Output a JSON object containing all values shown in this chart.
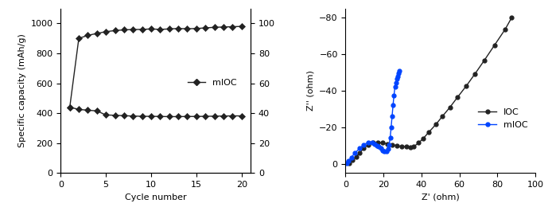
{
  "left_chart": {
    "xlabel": "Cycle number",
    "ylabel_left": "Specific capacity (mAh/g)",
    "xlim": [
      0,
      21
    ],
    "ylim_left": [
      0,
      1100
    ],
    "ylim_right": [
      0,
      110
    ],
    "yticks_left": [
      0,
      200,
      400,
      600,
      800,
      1000
    ],
    "yticks_right": [
      0,
      20,
      40,
      60,
      80,
      100
    ],
    "xticks": [
      0,
      5,
      10,
      15,
      20
    ],
    "line_color": "#222222",
    "marker_size": 4,
    "legend_label": "mIOC",
    "capacity_top": [
      440,
      900,
      920,
      933,
      945,
      952,
      957,
      959,
      960,
      963,
      960,
      963,
      966,
      964,
      966,
      970,
      974,
      976,
      978,
      980
    ],
    "capacity_bottom": [
      440,
      425,
      420,
      415,
      388,
      386,
      383,
      381,
      379,
      379,
      378,
      377,
      377,
      378,
      378,
      379,
      380,
      381,
      382,
      382
    ],
    "cycles": [
      1,
      2,
      3,
      4,
      5,
      6,
      7,
      8,
      9,
      10,
      11,
      12,
      13,
      14,
      15,
      16,
      17,
      18,
      19,
      20
    ]
  },
  "right_chart": {
    "xlabel": "Z' (ohm)",
    "ylabel": "Z'' (ohm)",
    "xlim": [
      0,
      100
    ],
    "ylim": [
      -85,
      5
    ],
    "xticks": [
      0,
      20,
      40,
      60,
      80,
      100
    ],
    "yticks": [
      -80,
      -60,
      -40,
      -20,
      0
    ],
    "ioc_color": "#222222",
    "mioc_color": "#0044ff",
    "legend_ioc": "IOC",
    "legend_mioc": "mIOC",
    "ioc_zreal": [
      2.0,
      3.5,
      5.5,
      7.5,
      9.5,
      12.0,
      14.5,
      17.0,
      19.5,
      22.0,
      24.5,
      27.0,
      29.5,
      32.0,
      34.0,
      36.0,
      38.5,
      41.0,
      44.0,
      47.5,
      51.0,
      55.0,
      59.0,
      63.5,
      68.0,
      73.0,
      78.5,
      84.0,
      87.5
    ],
    "ioc_zimag": [
      -0.5,
      -2.0,
      -4.0,
      -6.0,
      -8.5,
      -10.5,
      -11.5,
      -11.8,
      -11.5,
      -11.0,
      -10.5,
      -10.0,
      -9.5,
      -9.5,
      -9.0,
      -9.5,
      -11.5,
      -14.0,
      -17.5,
      -21.5,
      -26.0,
      -31.0,
      -36.5,
      -42.5,
      -49.0,
      -56.5,
      -65.0,
      -73.5,
      -80.0
    ],
    "mioc_zreal": [
      0.5,
      1.5,
      3.0,
      5.0,
      7.5,
      9.5,
      12.0,
      14.0,
      15.5,
      16.5,
      17.5,
      18.5,
      19.5,
      20.5,
      21.5,
      22.5,
      23.0,
      23.5,
      24.0,
      24.5,
      25.0,
      25.5,
      26.0,
      26.5,
      27.0,
      27.5,
      28.0,
      28.5
    ],
    "mioc_zimag": [
      -0.2,
      -1.5,
      -3.5,
      -6.0,
      -8.5,
      -10.5,
      -11.8,
      -11.5,
      -11.0,
      -10.0,
      -9.5,
      -8.5,
      -7.5,
      -7.0,
      -7.0,
      -8.0,
      -10.5,
      -14.5,
      -20.0,
      -26.0,
      -32.0,
      -37.5,
      -42.0,
      -44.5,
      -46.5,
      -48.0,
      -49.5,
      -51.0
    ]
  }
}
